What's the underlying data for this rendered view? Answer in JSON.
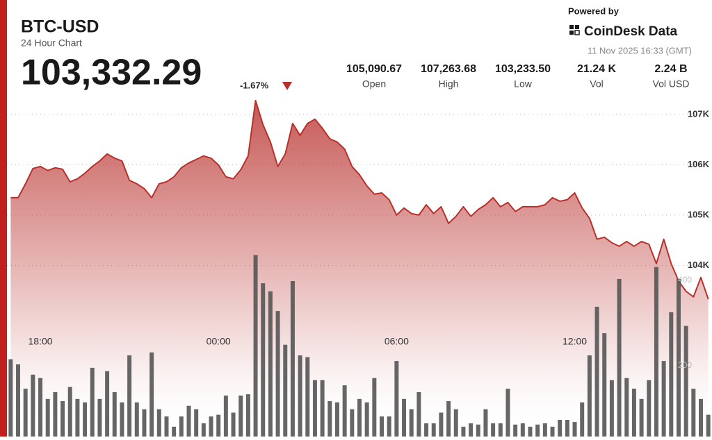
{
  "header": {
    "title": "BTC-USD",
    "subtitle": "24 Hour Chart",
    "price": "103,332.29",
    "change": "-1.67%"
  },
  "stats": [
    {
      "value": "105,090.67",
      "label": "Open"
    },
    {
      "value": "107,263.68",
      "label": "High"
    },
    {
      "value": "103,233.50",
      "label": "Low"
    },
    {
      "value": "21.24 K",
      "label": "Vol"
    },
    {
      "value": "2.24 B",
      "label": "Vol USD"
    }
  ],
  "brand": {
    "powered": "Powered by",
    "name": "CoinDesk Data",
    "timestamp": "11 Nov 2025 16:33 (GMT)"
  },
  "chart_data": {
    "type": "area",
    "categories": [
      null,
      null,
      null,
      null,
      "18:00",
      null,
      null,
      null,
      null,
      null,
      null,
      null,
      null,
      null,
      null,
      null,
      null,
      null,
      null,
      null,
      null,
      null,
      null,
      null,
      null,
      null,
      null,
      null,
      "00:00",
      null,
      null,
      null,
      null,
      null,
      null,
      null,
      null,
      null,
      null,
      null,
      null,
      null,
      null,
      null,
      null,
      null,
      null,
      null,
      null,
      null,
      null,
      null,
      "06:00",
      null,
      null,
      null,
      null,
      null,
      null,
      null,
      null,
      null,
      null,
      null,
      null,
      null,
      null,
      null,
      null,
      null,
      null,
      null,
      null,
      null,
      null,
      null,
      "12:00",
      null,
      null,
      null,
      null,
      null,
      null,
      null,
      null,
      null,
      null,
      null,
      null,
      null,
      null,
      null,
      null,
      null,
      null
    ],
    "series": [
      {
        "type": "area",
        "color": "#b8302c",
        "values": [
          105345,
          105345,
          105620,
          105925,
          105965,
          105885,
          105940,
          105910,
          105660,
          105720,
          105830,
          105965,
          106075,
          106215,
          106130,
          106075,
          105690,
          105620,
          105525,
          105345,
          105620,
          105660,
          105760,
          105940,
          106035,
          106105,
          106175,
          106130,
          105995,
          105760,
          105720,
          105900,
          106175,
          107275,
          106795,
          106450,
          105965,
          106215,
          106820,
          106585,
          106820,
          106905,
          106725,
          106515,
          106450,
          106310,
          105965,
          105800,
          105580,
          105415,
          105440,
          105305,
          105000,
          105140,
          105030,
          105000,
          105205,
          105030,
          105165,
          104835,
          104975,
          105165,
          104975,
          105110,
          105205,
          105345,
          105165,
          105250,
          105070,
          105165,
          105165,
          105165,
          105205,
          105345,
          105275,
          105305,
          105440,
          105140,
          104935,
          104520,
          104560,
          104450,
          104380,
          104475,
          104380,
          104475,
          104420,
          104035,
          104520,
          104035,
          103690,
          103485,
          103375,
          103760,
          103330
        ]
      },
      {
        "type": "bar",
        "axis": "y2",
        "color": "#555555",
        "values": [
          215,
          203,
          146,
          179,
          171,
          122,
          138,
          117,
          150,
          122,
          114,
          195,
          122,
          187,
          138,
          114,
          224,
          114,
          98,
          231,
          98,
          81,
          57,
          81,
          106,
          98,
          65,
          81,
          85,
          130,
          90,
          130,
          133,
          459,
          393,
          374,
          328,
          249,
          398,
          224,
          220,
          166,
          166,
          117,
          114,
          154,
          98,
          122,
          114,
          171,
          81,
          81,
          211,
          122,
          98,
          138,
          65,
          65,
          90,
          117,
          98,
          57,
          65,
          62,
          98,
          65,
          65,
          146,
          62,
          65,
          57,
          62,
          65,
          57,
          73,
          73,
          68,
          114,
          224,
          338,
          276,
          166,
          403,
          171,
          146,
          122,
          166,
          431,
          211,
          325,
          403,
          293,
          146,
          122,
          85
        ]
      }
    ],
    "ylim": [
      100600,
      107480
    ],
    "yticks": [
      {
        "value": 104000,
        "label": "104K"
      },
      {
        "value": 105000,
        "label": "105K"
      },
      {
        "value": 106000,
        "label": "106K"
      },
      {
        "value": 107000,
        "label": "107K"
      }
    ],
    "y2lim": [
      34,
      845
    ],
    "y2ticks": [
      200,
      400
    ],
    "grid": true
  }
}
